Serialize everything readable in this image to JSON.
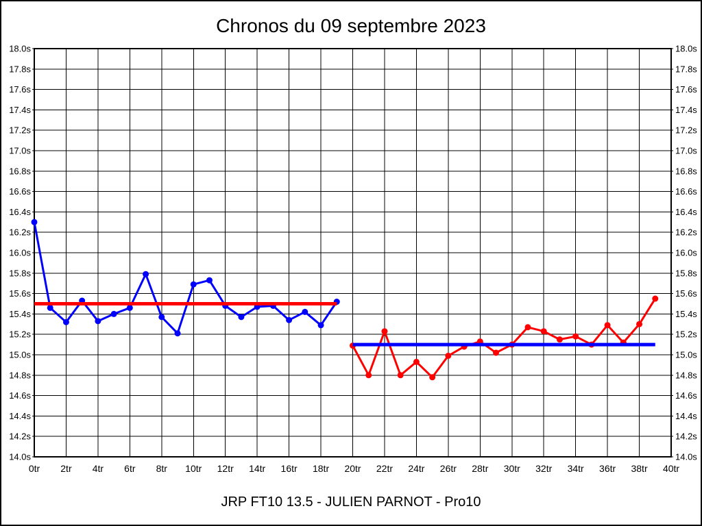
{
  "page": {
    "title": "Chronos du 09 septembre 2023",
    "caption": "JRP FT10 13.5 - JULIEN PARNOT - Pro10"
  },
  "chart_data": {
    "type": "line",
    "title": "Chronos du 09 septembre 2023",
    "caption": "JRP FT10 13.5 - JULIEN PARNOT - Pro10",
    "xlabel": "",
    "ylabel": "",
    "x_unit": "tr",
    "y_unit": "s",
    "xlim": [
      0,
      40
    ],
    "ylim": [
      14.0,
      18.0
    ],
    "grid": true,
    "legend": "none",
    "background": "#ffffff",
    "grid_color": "#000000",
    "x_ticks": [
      0,
      2,
      4,
      6,
      8,
      10,
      12,
      14,
      16,
      18,
      20,
      22,
      24,
      26,
      28,
      30,
      32,
      34,
      36,
      38,
      40
    ],
    "x_tick_labels": [
      "0tr",
      "2tr",
      "4tr",
      "6tr",
      "8tr",
      "10tr",
      "12tr",
      "14tr",
      "16tr",
      "18tr",
      "20tr",
      "22tr",
      "24tr",
      "26tr",
      "28tr",
      "30tr",
      "32tr",
      "34tr",
      "36tr",
      "38tr",
      "40tr"
    ],
    "y_ticks": [
      18.0,
      17.8,
      17.6,
      17.4,
      17.2,
      17.0,
      16.8,
      16.6,
      16.4,
      16.2,
      16.0,
      15.8,
      15.6,
      15.4,
      15.2,
      15.0,
      14.8,
      14.6,
      14.4,
      14.2,
      14.0
    ],
    "y_tick_labels": [
      "18.0s",
      "17.8s",
      "17.6s",
      "17.4s",
      "17.2s",
      "17.0s",
      "16.8s",
      "16.6s",
      "16.4s",
      "16.2s",
      "16.0s",
      "15.8s",
      "15.6s",
      "15.4s",
      "15.2s",
      "15.0s",
      "14.8s",
      "14.6s",
      "14.4s",
      "14.2s",
      "14.0s"
    ],
    "series": [
      {
        "name": "chronos-serie-1",
        "color": "#0000ff",
        "x": [
          0,
          1,
          2,
          3,
          4,
          5,
          6,
          7,
          8,
          9,
          10,
          11,
          12,
          13,
          14,
          15,
          16,
          17,
          18,
          19
        ],
        "values": [
          16.3,
          15.46,
          15.32,
          15.53,
          15.33,
          15.4,
          15.46,
          15.79,
          15.37,
          15.21,
          15.69,
          15.73,
          15.48,
          15.37,
          15.47,
          15.48,
          15.34,
          15.42,
          15.29,
          15.52
        ]
      },
      {
        "name": "chronos-serie-2",
        "color": "#ff0000",
        "x": [
          20,
          21,
          22,
          23,
          24,
          25,
          26,
          27,
          28,
          29,
          30,
          31,
          32,
          33,
          34,
          35,
          36,
          37,
          38,
          39
        ],
        "values": [
          15.09,
          14.8,
          15.23,
          14.8,
          14.93,
          14.78,
          14.99,
          15.08,
          15.13,
          15.02,
          15.1,
          15.27,
          15.23,
          15.15,
          15.18,
          15.1,
          15.29,
          15.12,
          15.3,
          15.55
        ]
      }
    ],
    "mean_lines": [
      {
        "name": "moyenne-serie-1",
        "color": "#ff0000",
        "value": 15.5,
        "x_range": [
          0,
          19
        ]
      },
      {
        "name": "moyenne-serie-2",
        "color": "#0000ff",
        "value": 15.1,
        "x_range": [
          20,
          39
        ]
      }
    ]
  }
}
